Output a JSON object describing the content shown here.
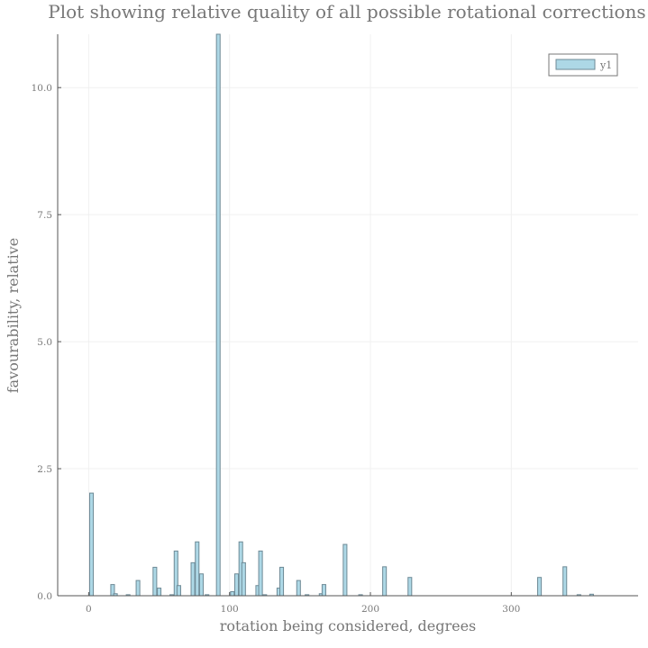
{
  "chart_data": {
    "type": "bar",
    "title": "Plot showing relative quality of all possible rotational corrections",
    "xlabel": "rotation being considered, degrees",
    "ylabel": "favourability, relative",
    "xlim": [
      -22,
      390
    ],
    "ylim": [
      0,
      11.05
    ],
    "x_ticks": [
      0,
      100,
      200,
      300
    ],
    "x_tick_labels": [
      "0",
      "100",
      "200",
      "300"
    ],
    "y_ticks": [
      0,
      2.5,
      5,
      7.5,
      10
    ],
    "y_tick_labels": [
      "0.0",
      "2.5",
      "5.0",
      "7.5",
      "10.0"
    ],
    "grid": true,
    "legend_position": "top-right",
    "bar_width": 2.6,
    "series": [
      {
        "name": "y1",
        "color": "#add8e6",
        "edge_color": "#6e8a96",
        "x": [
          2,
          17,
          19,
          28,
          35,
          47,
          50,
          59,
          62,
          64,
          74,
          77,
          80,
          84,
          92,
          102,
          105,
          108,
          110,
          120,
          122,
          125,
          135,
          137,
          149,
          155,
          165,
          167,
          182,
          193,
          210,
          228,
          320,
          338,
          348,
          357
        ],
        "values": [
          2.02,
          0.22,
          0.04,
          0.02,
          0.3,
          0.56,
          0.15,
          0.02,
          0.88,
          0.2,
          0.65,
          1.06,
          0.43,
          0.02,
          11.05,
          0.08,
          0.43,
          1.06,
          0.65,
          0.2,
          0.88,
          0.02,
          0.15,
          0.56,
          0.3,
          0.02,
          0.04,
          0.22,
          1.01,
          0.02,
          0.57,
          0.36,
          0.36,
          0.57,
          0.02,
          0.03
        ]
      }
    ]
  }
}
